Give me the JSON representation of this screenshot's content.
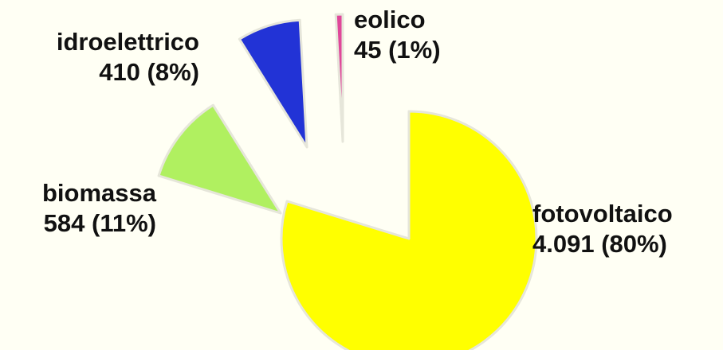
{
  "chart_data": {
    "type": "pie",
    "title": "",
    "slices": [
      {
        "label": "fotovoltaico",
        "value": 4091,
        "value_label": "4.091 (80%)",
        "percent": 80,
        "color": "#FFFF00"
      },
      {
        "label": "biomassa",
        "value": 584,
        "value_label": "584 (11%)",
        "percent": 11,
        "color": "#B0F060"
      },
      {
        "label": "idroelettrico",
        "value": 410,
        "value_label": "410 (8%)",
        "percent": 8,
        "color": "#2233D6"
      },
      {
        "label": "eolico",
        "value": 45,
        "value_label": "45 (1%)",
        "percent": 1,
        "color": "#E0479A"
      }
    ],
    "exploded": true,
    "legend": "none"
  }
}
